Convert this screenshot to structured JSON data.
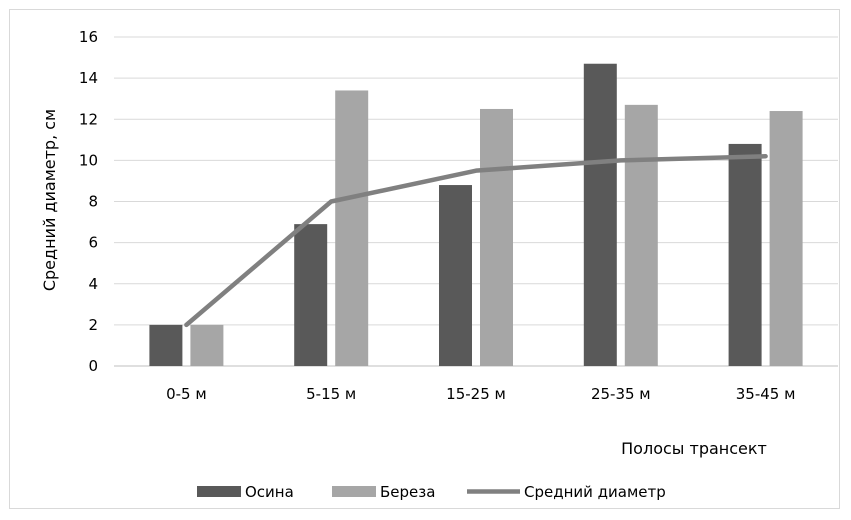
{
  "chart_data": {
    "type": "bar",
    "xlabel": "Полосы трансект",
    "ylabel": "Средний диаметр, см",
    "categories": [
      "0-5 м",
      "5-15 м",
      "15-25 м",
      "25-35 м",
      "35-45 м"
    ],
    "ylim": [
      0,
      16
    ],
    "yticks": [
      0,
      2,
      4,
      6,
      8,
      10,
      12,
      14,
      16
    ],
    "grid": true,
    "legend_position": "bottom",
    "series": [
      {
        "name": "Осина",
        "kind": "bar",
        "color": "#595959",
        "values": [
          2,
          6.9,
          8.8,
          14.7,
          10.8
        ]
      },
      {
        "name": "Береза",
        "kind": "bar",
        "color": "#a6a6a6",
        "values": [
          2,
          13.4,
          12.5,
          12.7,
          12.4
        ]
      },
      {
        "name": "Средний диаметр",
        "kind": "line",
        "color": "#808080",
        "values": [
          2,
          8,
          9.5,
          10,
          10.2
        ]
      }
    ]
  }
}
